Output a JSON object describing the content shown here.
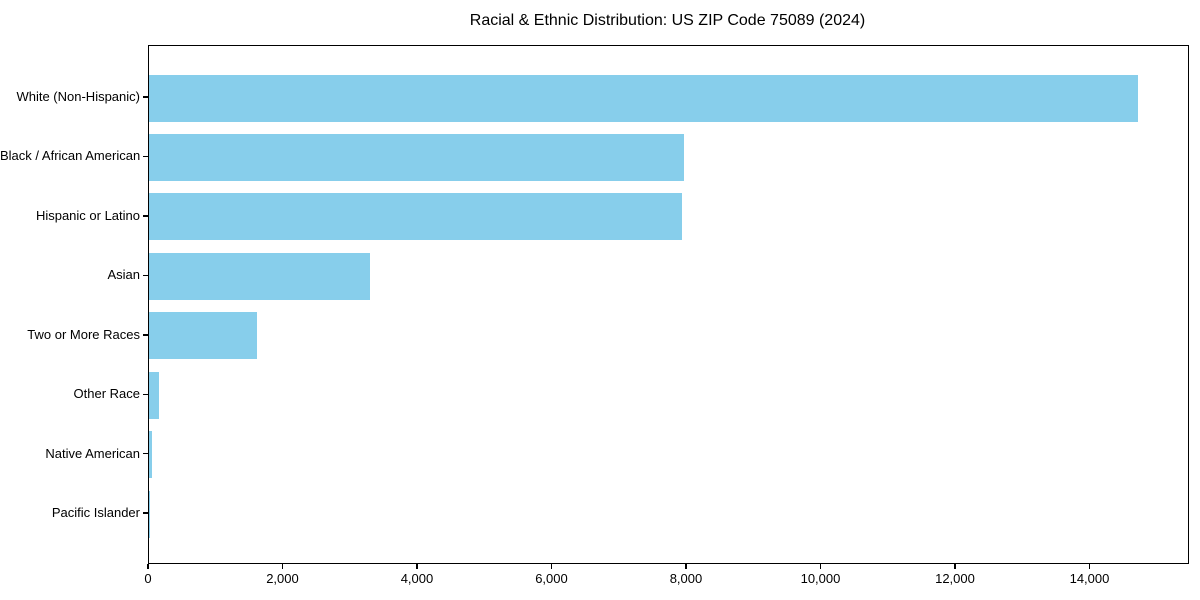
{
  "figure": {
    "title": "Racial & Ethnic Distribution: US ZIP Code 75089 (2024)"
  },
  "chart_data": {
    "type": "bar",
    "orientation": "horizontal",
    "title": "Racial & Ethnic Distribution: US ZIP Code 75089 (2024)",
    "xlabel": "",
    "ylabel": "",
    "categories": [
      "White (Non-Hispanic)",
      "Black / African American",
      "Hispanic or Latino",
      "Asian",
      "Two or More Races",
      "Other Race",
      "Native American",
      "Pacific Islander"
    ],
    "values": [
      14710,
      7960,
      7930,
      3280,
      1600,
      150,
      50,
      10
    ],
    "xlim": [
      0,
      15450
    ],
    "xticks": [
      0,
      2000,
      4000,
      6000,
      8000,
      10000,
      12000,
      14000
    ],
    "xtick_labels": [
      "0",
      "2,000",
      "4,000",
      "6,000",
      "8,000",
      "10,000",
      "12,000",
      "14,000"
    ],
    "bar_color": "#87CEEB",
    "spine_color": "#000000",
    "grid": false,
    "legend": null
  }
}
